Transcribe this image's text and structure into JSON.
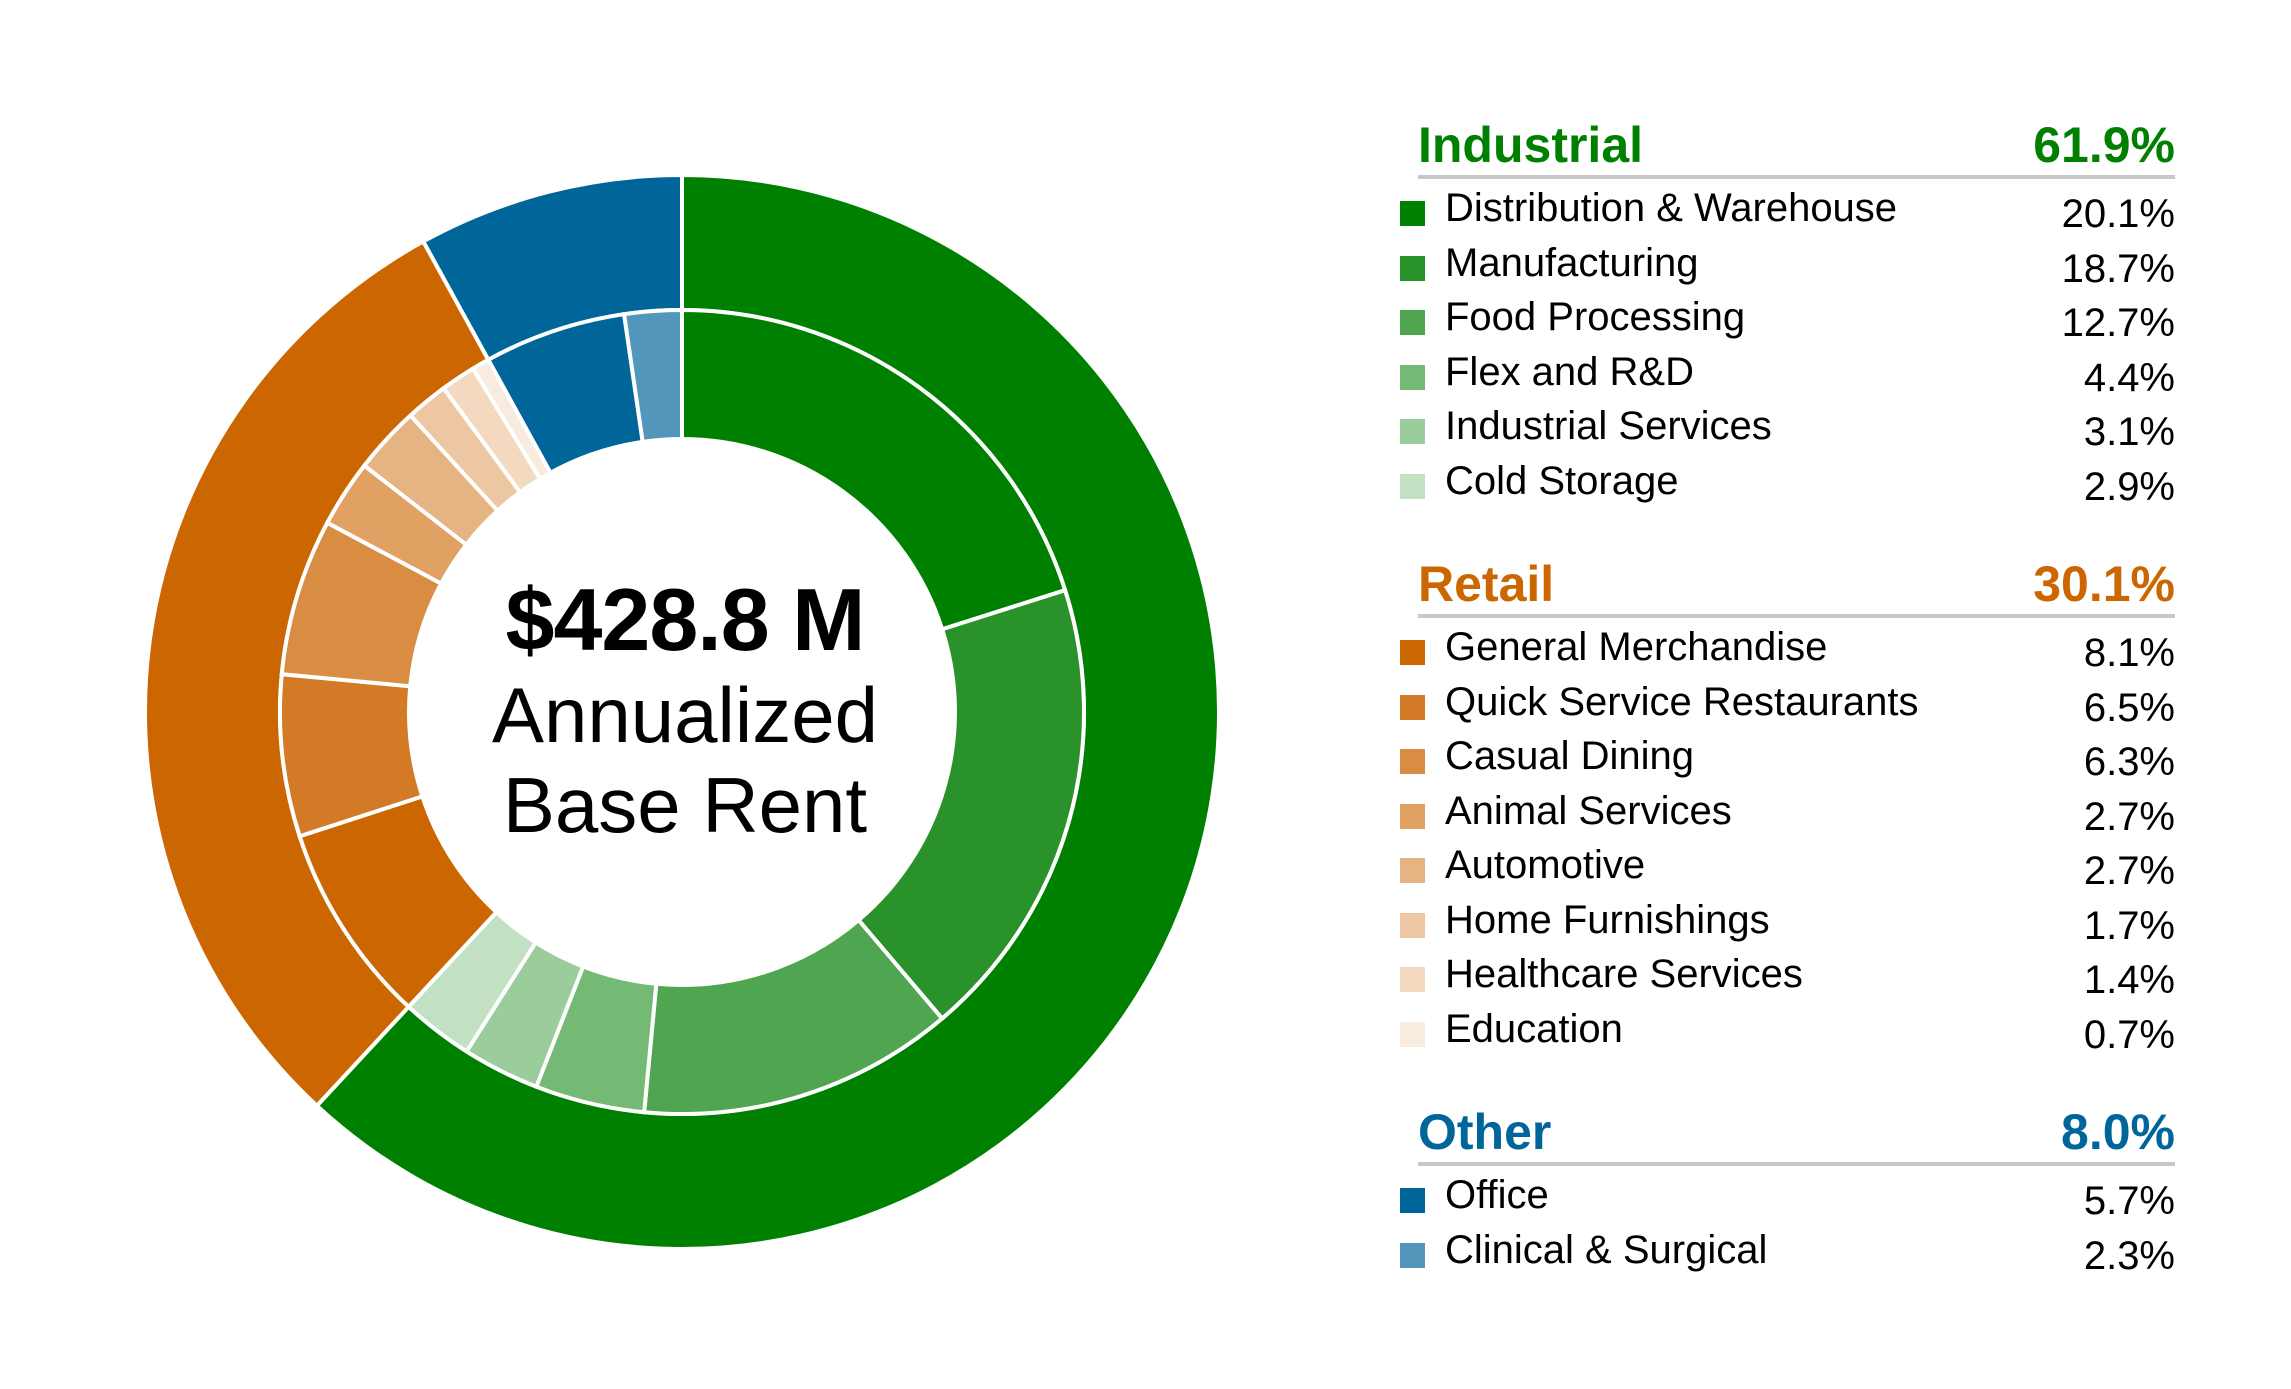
{
  "center": {
    "amount": "$428.8 M",
    "line1": "Annualized",
    "line2": "Base Rent"
  },
  "legend": {
    "groups": [
      {
        "title": "Industrial",
        "total": "61.9%",
        "color": "#008000",
        "items": [
          {
            "label": "Distribution & Warehouse",
            "value": "20.1%",
            "color": "#008000"
          },
          {
            "label": "Manufacturing",
            "value": "18.7%",
            "color": "#2a922a"
          },
          {
            "label": "Food Processing",
            "value": "12.7%",
            "color": "#50a650"
          },
          {
            "label": "Flex and R&D",
            "value": "4.4%",
            "color": "#74b974"
          },
          {
            "label": "Industrial Services",
            "value": "3.1%",
            "color": "#9bcc9b"
          },
          {
            "label": "Cold Storage",
            "value": "2.9%",
            "color": "#c2e0c2"
          }
        ]
      },
      {
        "title": "Retail",
        "total": "30.1%",
        "color": "#cc6600",
        "items": [
          {
            "label": "General Merchandise",
            "value": "8.1%",
            "color": "#cc6600"
          },
          {
            "label": "Quick Service Restaurants",
            "value": "6.5%",
            "color": "#d27a25"
          },
          {
            "label": "Casual Dining",
            "value": "6.3%",
            "color": "#d98d43"
          },
          {
            "label": "Animal Services",
            "value": "2.7%",
            "color": "#e0a162"
          },
          {
            "label": "Automotive",
            "value": "2.7%",
            "color": "#e6b482"
          },
          {
            "label": "Home Furnishings",
            "value": "1.7%",
            "color": "#ecc7a2"
          },
          {
            "label": "Healthcare Services",
            "value": "1.4%",
            "color": "#f2d9c0"
          },
          {
            "label": "Education",
            "value": "0.7%",
            "color": "#f8ebdf"
          }
        ]
      },
      {
        "title": "Other",
        "total": "8.0%",
        "color": "#006699",
        "items": [
          {
            "label": "Office",
            "value": "5.7%",
            "color": "#006699"
          },
          {
            "label": "Clinical & Surgical",
            "value": "2.3%",
            "color": "#5296bb"
          }
        ]
      }
    ]
  },
  "chart_data": {
    "type": "pie",
    "subtype": "nested-donut",
    "center_text": "$428.8 M Annualized Base Rent",
    "outer": [
      {
        "name": "Industrial",
        "value": 61.9,
        "color": "#008000"
      },
      {
        "name": "Retail",
        "value": 30.1,
        "color": "#cc6600"
      },
      {
        "name": "Other",
        "value": 8.0,
        "color": "#006699"
      }
    ],
    "inner": [
      {
        "name": "Distribution & Warehouse",
        "group": "Industrial",
        "value": 20.1,
        "color": "#008000"
      },
      {
        "name": "Manufacturing",
        "group": "Industrial",
        "value": 18.7,
        "color": "#2a922a"
      },
      {
        "name": "Food Processing",
        "group": "Industrial",
        "value": 12.7,
        "color": "#50a650"
      },
      {
        "name": "Flex and R&D",
        "group": "Industrial",
        "value": 4.4,
        "color": "#74b974"
      },
      {
        "name": "Industrial Services",
        "group": "Industrial",
        "value": 3.1,
        "color": "#9bcc9b"
      },
      {
        "name": "Cold Storage",
        "group": "Industrial",
        "value": 2.9,
        "color": "#c2e0c2"
      },
      {
        "name": "General Merchandise",
        "group": "Retail",
        "value": 8.1,
        "color": "#cc6600"
      },
      {
        "name": "Quick Service Restaurants",
        "group": "Retail",
        "value": 6.5,
        "color": "#d27a25"
      },
      {
        "name": "Casual Dining",
        "group": "Retail",
        "value": 6.3,
        "color": "#d98d43"
      },
      {
        "name": "Animal Services",
        "group": "Retail",
        "value": 2.7,
        "color": "#e0a162"
      },
      {
        "name": "Automotive",
        "group": "Retail",
        "value": 2.7,
        "color": "#e6b482"
      },
      {
        "name": "Home Furnishings",
        "group": "Retail",
        "value": 1.7,
        "color": "#ecc7a2"
      },
      {
        "name": "Healthcare Services",
        "group": "Retail",
        "value": 1.4,
        "color": "#f2d9c0"
      },
      {
        "name": "Education",
        "group": "Retail",
        "value": 0.7,
        "color": "#f8ebdf"
      },
      {
        "name": "Office",
        "group": "Other",
        "value": 5.7,
        "color": "#006699"
      },
      {
        "name": "Clinical & Surgical",
        "group": "Other",
        "value": 2.3,
        "color": "#5296bb"
      }
    ]
  }
}
